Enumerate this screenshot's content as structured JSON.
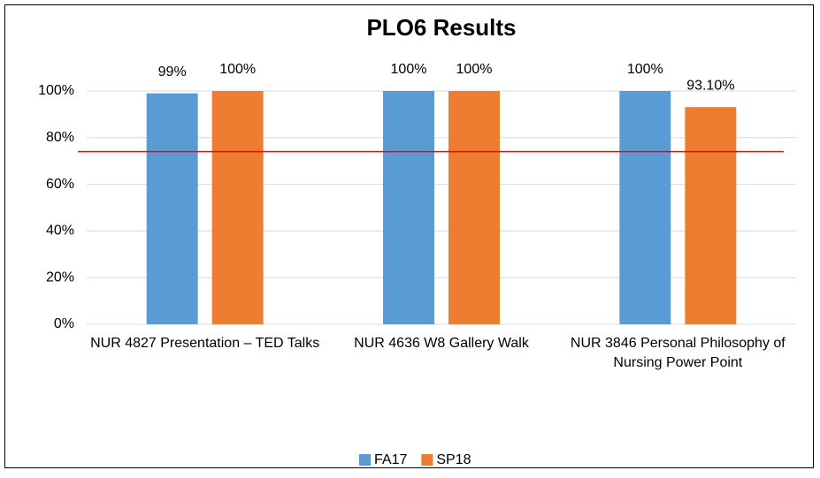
{
  "chart_data": {
    "type": "bar",
    "title": "PLO6 Results",
    "categories": [
      "NUR 4827 Presentation – TED Talks",
      "NUR 4636 W8 Gallery Walk",
      "NUR 3846 Personal Philosophy of Nursing Power Point"
    ],
    "series": [
      {
        "name": "FA17",
        "color": "#5b9bd5",
        "values": [
          99,
          100,
          100
        ],
        "value_labels": [
          "99%",
          "100%",
          "100%"
        ]
      },
      {
        "name": "SP18",
        "color": "#ed7d31",
        "values": [
          100,
          100,
          93.1
        ],
        "value_labels": [
          "100%",
          "100%",
          "93.10%"
        ]
      }
    ],
    "reference_line": {
      "value": 74,
      "color": "#ff0000"
    },
    "ylim": [
      0,
      100
    ],
    "yticks": [
      {
        "value": 0,
        "label": "0%"
      },
      {
        "value": 20,
        "label": "20%"
      },
      {
        "value": 40,
        "label": "40%"
      },
      {
        "value": 60,
        "label": "60%"
      },
      {
        "value": 80,
        "label": "80%"
      },
      {
        "value": 100,
        "label": "100%"
      }
    ],
    "grid": true,
    "legend": "bottom"
  }
}
